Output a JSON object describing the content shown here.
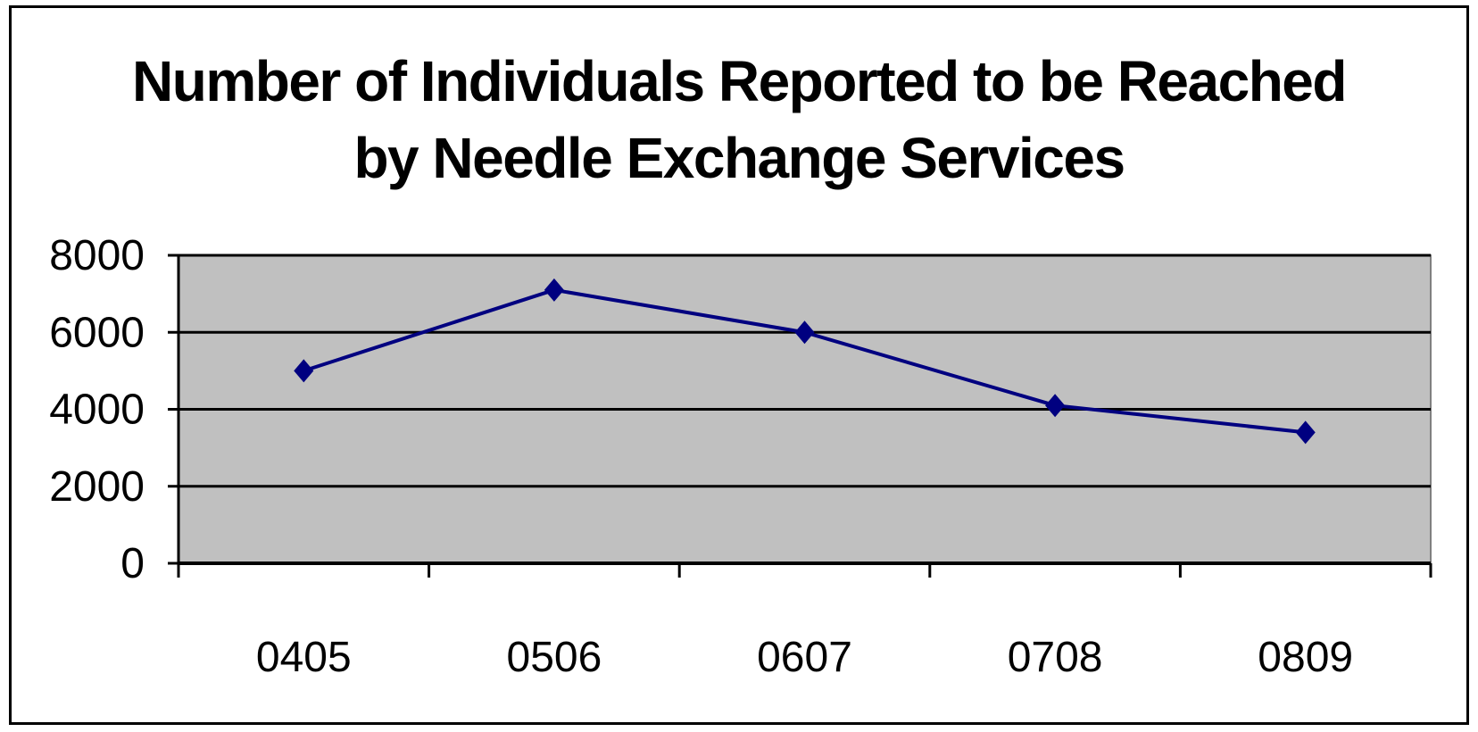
{
  "chart_data": {
    "type": "line",
    "title": [
      "Number of Individuals Reported to be Reached",
      "by Needle Exchange Services"
    ],
    "xlabel": "",
    "ylabel": "",
    "categories": [
      "0405",
      "0506",
      "0607",
      "0708",
      "0809"
    ],
    "series": [
      {
        "values": [
          5000,
          7100,
          6000,
          4100,
          3400
        ]
      }
    ],
    "ylim": [
      0,
      8000
    ],
    "yticks": [
      "0",
      "2000",
      "4000",
      "6000",
      "8000"
    ],
    "grid": true,
    "legend": "none",
    "colors": {
      "plot_background": "#c0c0c0",
      "line": "#000080",
      "gridline": "#000000"
    }
  }
}
